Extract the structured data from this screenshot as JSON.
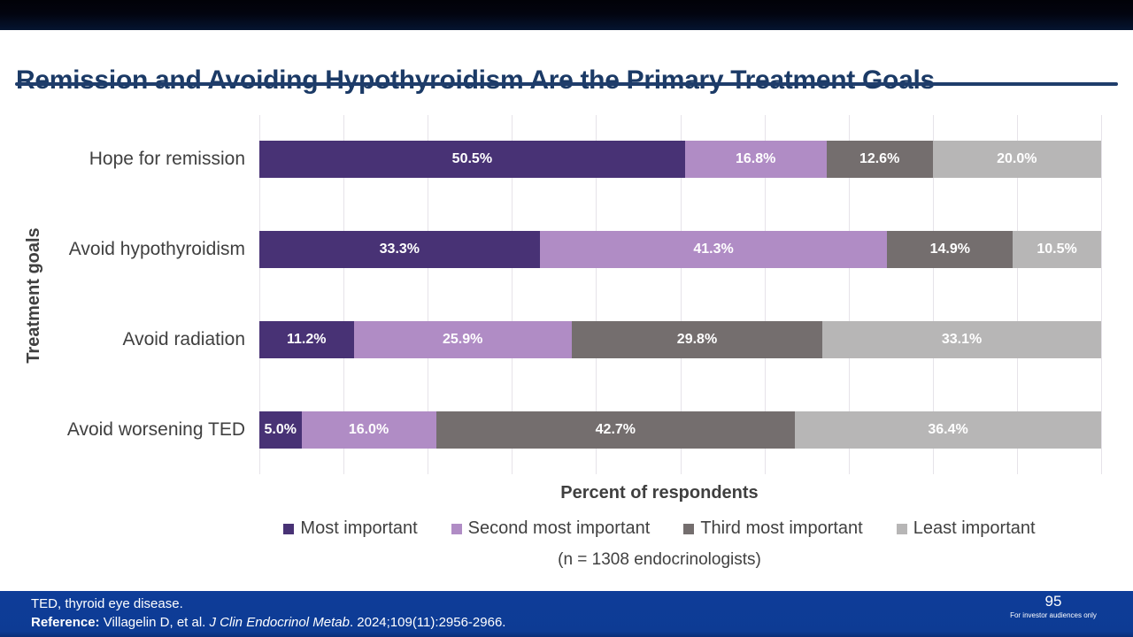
{
  "slide": {
    "title": "Remission and Avoiding Hypothyroidism Are the Primary Treatment Goals",
    "footer": {
      "abbreviation": "TED, thyroid eye disease.",
      "reference_label": "Reference:",
      "reference_authors": " Villagelin D, et al. ",
      "reference_journal": "J Clin Endocrinol Metab",
      "reference_tail": ". 2024;109(11):2956-2966.",
      "page_number": "95",
      "audience_note": "For investor audiences only"
    }
  },
  "chart_data": {
    "type": "bar",
    "orientation": "horizontal-stacked",
    "title": "",
    "xlabel": "Percent of respondents",
    "ylabel": "Treatment goals",
    "note": "(n = 1308 endocrinologists)",
    "xlim": [
      0,
      100
    ],
    "gridline_interval_percent": 10,
    "grid": true,
    "legend_position": "bottom",
    "value_suffix": "%",
    "categories": [
      "Hope for remission",
      "Avoid hypothyroidism",
      "Avoid radiation",
      "Avoid worsening TED"
    ],
    "series": [
      {
        "name": "Most important",
        "color": "#483275",
        "values": [
          50.5,
          33.3,
          11.2,
          5.0
        ]
      },
      {
        "name": "Second most important",
        "color": "#b08cc5",
        "values": [
          16.8,
          41.3,
          25.9,
          16.0
        ]
      },
      {
        "name": "Third most important",
        "color": "#746e6e",
        "values": [
          12.6,
          14.9,
          29.8,
          42.7
        ]
      },
      {
        "name": "Least important",
        "color": "#b7b6b6",
        "values": [
          20.0,
          10.5,
          33.1,
          36.4
        ]
      }
    ],
    "colors": {
      "title_navy": "#1b3a66",
      "rule_navy": "#1f3d6b",
      "footer_blue": "#0d3b94",
      "axis_text": "#404040",
      "gridline": "#e6e3e9",
      "bar_value_text": "#ffffff"
    }
  }
}
